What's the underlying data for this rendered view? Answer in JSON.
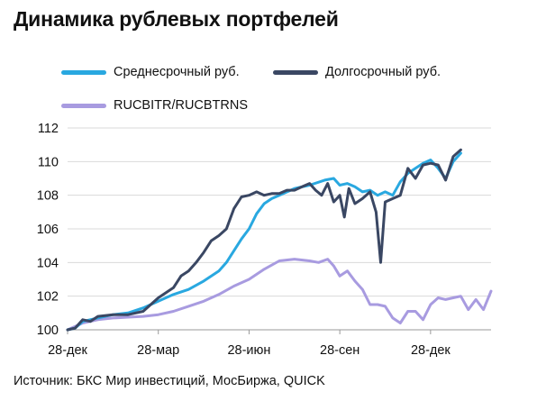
{
  "title": "Динамика рублевых портфелей",
  "source": "Источник: БКС Мир инвестиций, МосБиржа, QUICK",
  "chart_data": {
    "type": "line",
    "title": "Динамика рублевых портфелей",
    "xlabel": "",
    "ylabel": "",
    "ylim": [
      100,
      112
    ],
    "yticks": [
      100,
      102,
      104,
      106,
      108,
      110,
      112
    ],
    "xticks": [
      "28-дек",
      "28-мар",
      "28-июн",
      "28-сен",
      "28-дек"
    ],
    "grid": "horizontal",
    "legend_position": "top",
    "x_unit": "month-index (0 = 28-дек, 12 = 28-дек)",
    "series": [
      {
        "name": "Среднесрочный руб.",
        "color": "#29a8e0",
        "points": [
          [
            0,
            100
          ],
          [
            0.25,
            100.1
          ],
          [
            0.5,
            100.5
          ],
          [
            0.75,
            100.6
          ],
          [
            1,
            100.7
          ],
          [
            1.5,
            100.9
          ],
          [
            2,
            101.0
          ],
          [
            2.5,
            101.3
          ],
          [
            3,
            101.7
          ],
          [
            3.5,
            102.1
          ],
          [
            4,
            102.4
          ],
          [
            4.5,
            102.9
          ],
          [
            5,
            103.5
          ],
          [
            5.25,
            104.0
          ],
          [
            5.5,
            104.7
          ],
          [
            5.75,
            105.4
          ],
          [
            6,
            106.0
          ],
          [
            6.25,
            106.9
          ],
          [
            6.5,
            107.5
          ],
          [
            6.75,
            107.8
          ],
          [
            7,
            108.0
          ],
          [
            7.5,
            108.4
          ],
          [
            8,
            108.6
          ],
          [
            8.5,
            108.9
          ],
          [
            8.8,
            109.0
          ],
          [
            9,
            108.6
          ],
          [
            9.25,
            108.7
          ],
          [
            9.5,
            108.5
          ],
          [
            9.75,
            108.2
          ],
          [
            10,
            108.3
          ],
          [
            10.25,
            108.0
          ],
          [
            10.5,
            108.2
          ],
          [
            10.75,
            108.0
          ],
          [
            11,
            108.8
          ],
          [
            11.25,
            109.3
          ],
          [
            11.5,
            109.6
          ],
          [
            11.75,
            109.9
          ],
          [
            12,
            110.1
          ],
          [
            12.25,
            109.6
          ],
          [
            12.5,
            109.0
          ],
          [
            12.75,
            110.0
          ],
          [
            13,
            110.5
          ]
        ]
      },
      {
        "name": "Долгосрочный руб.",
        "color": "#3a4763",
        "points": [
          [
            0,
            100
          ],
          [
            0.25,
            100.1
          ],
          [
            0.5,
            100.6
          ],
          [
            0.75,
            100.5
          ],
          [
            1,
            100.8
          ],
          [
            1.5,
            100.9
          ],
          [
            2,
            100.9
          ],
          [
            2.5,
            101.1
          ],
          [
            3,
            101.9
          ],
          [
            3.25,
            102.2
          ],
          [
            3.5,
            102.5
          ],
          [
            3.75,
            103.2
          ],
          [
            4,
            103.5
          ],
          [
            4.25,
            104.0
          ],
          [
            4.5,
            104.6
          ],
          [
            4.75,
            105.3
          ],
          [
            5,
            105.6
          ],
          [
            5.25,
            106.0
          ],
          [
            5.5,
            107.2
          ],
          [
            5.75,
            107.9
          ],
          [
            6,
            108.0
          ],
          [
            6.25,
            108.2
          ],
          [
            6.5,
            108.0
          ],
          [
            6.75,
            108.1
          ],
          [
            7,
            108.1
          ],
          [
            7.25,
            108.3
          ],
          [
            7.5,
            108.3
          ],
          [
            7.75,
            108.5
          ],
          [
            8,
            108.7
          ],
          [
            8.2,
            108.3
          ],
          [
            8.4,
            108.0
          ],
          [
            8.6,
            108.7
          ],
          [
            8.8,
            107.6
          ],
          [
            9,
            108.0
          ],
          [
            9.15,
            106.7
          ],
          [
            9.3,
            108.4
          ],
          [
            9.5,
            107.5
          ],
          [
            9.75,
            107.8
          ],
          [
            10,
            108.2
          ],
          [
            10.2,
            107.0
          ],
          [
            10.35,
            104.0
          ],
          [
            10.5,
            107.6
          ],
          [
            10.75,
            107.8
          ],
          [
            11,
            108.0
          ],
          [
            11.25,
            109.6
          ],
          [
            11.5,
            109.0
          ],
          [
            11.75,
            109.8
          ],
          [
            12,
            109.9
          ],
          [
            12.25,
            109.8
          ],
          [
            12.5,
            108.9
          ],
          [
            12.75,
            110.3
          ],
          [
            13,
            110.7
          ]
        ]
      },
      {
        "name": "RUCBITR/RUCBTRNS",
        "color": "#a89be0",
        "points": [
          [
            0,
            100
          ],
          [
            0.5,
            100.4
          ],
          [
            1,
            100.6
          ],
          [
            1.5,
            100.7
          ],
          [
            2,
            100.75
          ],
          [
            2.5,
            100.8
          ],
          [
            3,
            100.9
          ],
          [
            3.5,
            101.1
          ],
          [
            4,
            101.4
          ],
          [
            4.5,
            101.7
          ],
          [
            5,
            102.1
          ],
          [
            5.5,
            102.6
          ],
          [
            6,
            103.0
          ],
          [
            6.5,
            103.6
          ],
          [
            7,
            104.1
          ],
          [
            7.5,
            104.2
          ],
          [
            8,
            104.1
          ],
          [
            8.3,
            104.0
          ],
          [
            8.6,
            104.2
          ],
          [
            8.8,
            103.8
          ],
          [
            9,
            103.2
          ],
          [
            9.25,
            103.5
          ],
          [
            9.5,
            102.9
          ],
          [
            9.75,
            102.4
          ],
          [
            10,
            101.5
          ],
          [
            10.25,
            101.5
          ],
          [
            10.5,
            101.4
          ],
          [
            10.75,
            100.7
          ],
          [
            11,
            100.4
          ],
          [
            11.25,
            101.1
          ],
          [
            11.5,
            101.1
          ],
          [
            11.75,
            100.6
          ],
          [
            12,
            101.5
          ],
          [
            12.25,
            101.9
          ],
          [
            12.5,
            101.8
          ],
          [
            12.75,
            101.9
          ],
          [
            13,
            102.0
          ],
          [
            13.25,
            101.2
          ],
          [
            13.5,
            101.8
          ],
          [
            13.75,
            101.2
          ],
          [
            14,
            102.3
          ]
        ]
      }
    ]
  }
}
